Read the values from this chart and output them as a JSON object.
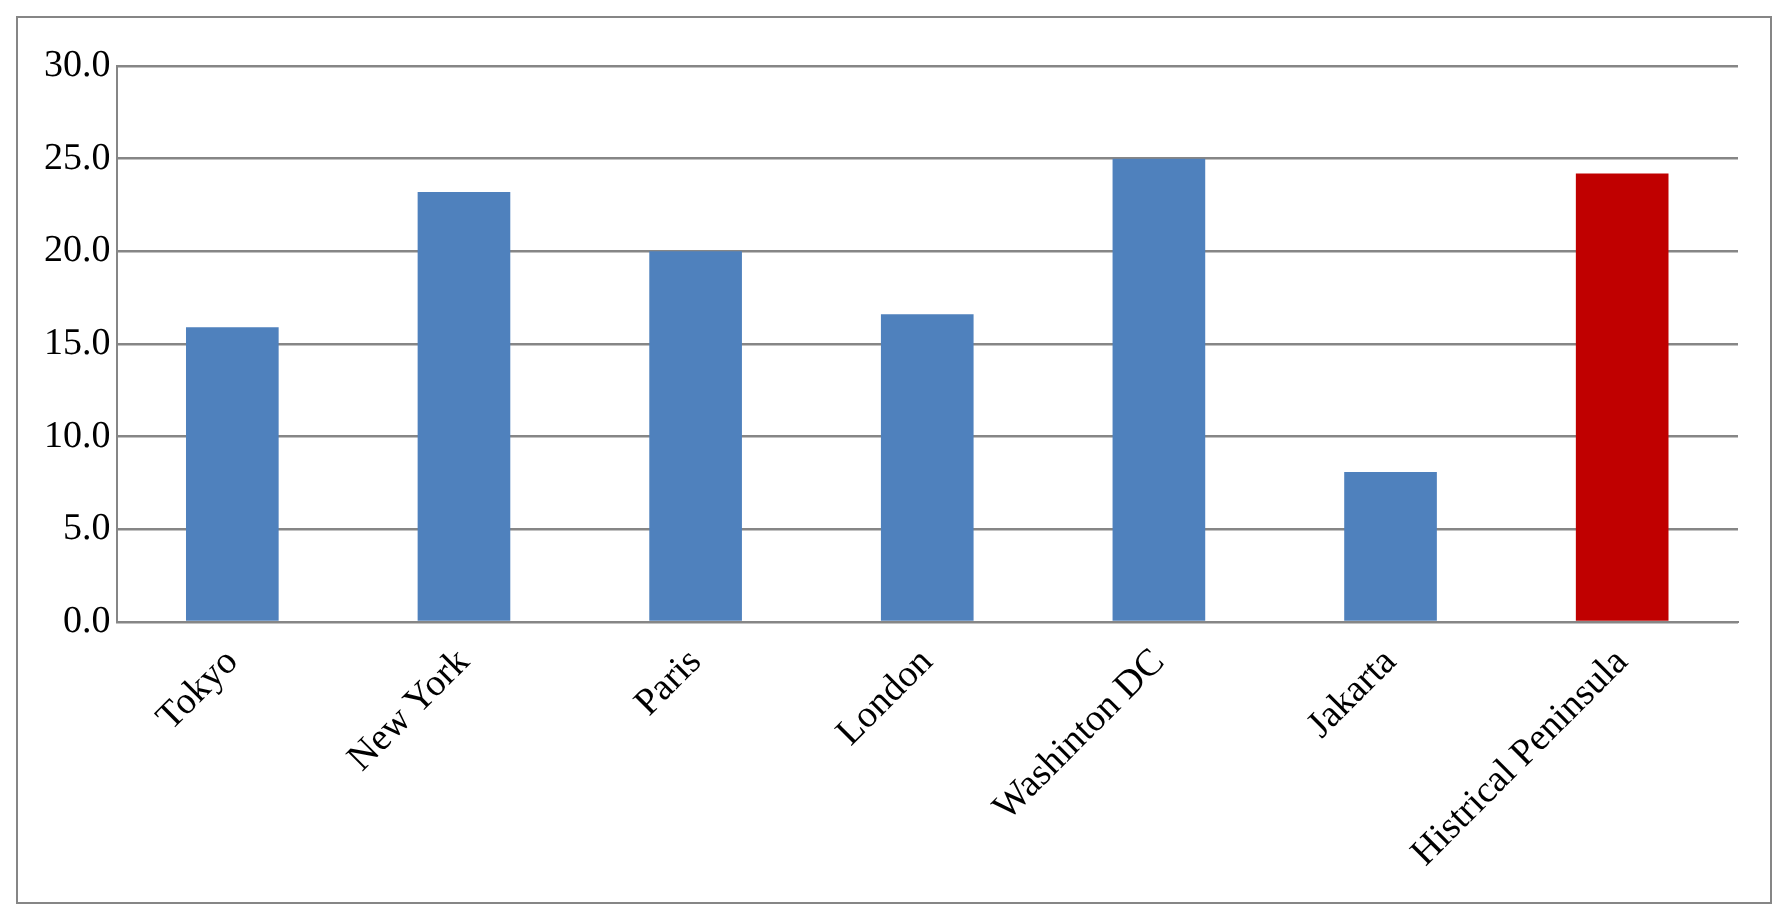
{
  "chart_data": {
    "type": "bar",
    "categories": [
      "Tokyo",
      "New York",
      "Paris",
      "London",
      "Washinton DC",
      "Jakarta",
      "Histrical Peninsula"
    ],
    "values": [
      15.9,
      23.2,
      20.0,
      16.6,
      25.0,
      8.1,
      24.2
    ],
    "colors": [
      "#4f81bd",
      "#4f81bd",
      "#4f81bd",
      "#4f81bd",
      "#4f81bd",
      "#4f81bd",
      "#c00000"
    ],
    "ylim": [
      0,
      30
    ],
    "yticks": [
      {
        "value": 0,
        "label": "0.0"
      },
      {
        "value": 5,
        "label": "5.0"
      },
      {
        "value": 10,
        "label": "10.0"
      },
      {
        "value": 15,
        "label": "15.0"
      },
      {
        "value": 20,
        "label": "20.0"
      },
      {
        "value": 25,
        "label": "25.0"
      },
      {
        "value": 30,
        "label": "30.0"
      }
    ],
    "grid": "y",
    "legend": false
  }
}
